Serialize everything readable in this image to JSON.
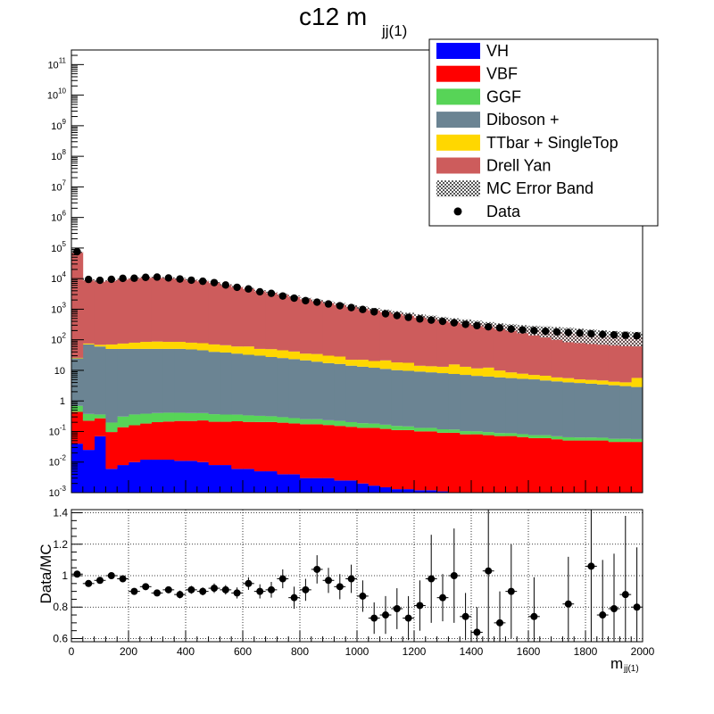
{
  "chart_data": {
    "type": "bar",
    "title": "c12  m",
    "title_subscript": "jj(1)",
    "xlabel": "m",
    "xlabel_subscript": "jj(1)",
    "ratio_ylabel": "Data/MC",
    "x_range": [
      0,
      2000
    ],
    "x_ticks": [
      0,
      200,
      400,
      600,
      800,
      1000,
      1200,
      1400,
      1600,
      1800,
      2000
    ],
    "y_scale": "log",
    "y_range": [
      0.001,
      300000000000
    ],
    "y_ticks": [
      {
        "value": 0.001,
        "base": "10",
        "exp": "-3"
      },
      {
        "value": 0.01,
        "base": "10",
        "exp": "-2"
      },
      {
        "value": 0.1,
        "base": "10",
        "exp": "-1"
      },
      {
        "value": 1,
        "base": "1",
        "exp": ""
      },
      {
        "value": 10,
        "base": "10",
        "exp": ""
      },
      {
        "value": 100,
        "base": "10",
        "exp": "2"
      },
      {
        "value": 1000,
        "base": "10",
        "exp": "3"
      },
      {
        "value": 10000,
        "base": "10",
        "exp": "4"
      },
      {
        "value": 100000,
        "base": "10",
        "exp": "5"
      },
      {
        "value": 1000000,
        "base": "10",
        "exp": "6"
      },
      {
        "value": 10000000,
        "base": "10",
        "exp": "7"
      },
      {
        "value": 100000000,
        "base": "10",
        "exp": "8"
      },
      {
        "value": 1000000000,
        "base": "10",
        "exp": "9"
      },
      {
        "value": 10000000000,
        "base": "10",
        "exp": "10"
      },
      {
        "value": 100000000000,
        "base": "10",
        "exp": "11"
      }
    ],
    "ratio_range": [
      0.58,
      1.42
    ],
    "ratio_ticks": [
      0.6,
      0.8,
      1,
      1.2,
      1.4
    ],
    "ratio_tick_labels": [
      "0.6",
      "0.8",
      "1",
      "1.2",
      "1.4"
    ],
    "bin_width": 40,
    "bin_centers": [
      20,
      60,
      100,
      140,
      180,
      220,
      260,
      300,
      340,
      380,
      420,
      460,
      500,
      540,
      580,
      620,
      660,
      700,
      740,
      780,
      820,
      860,
      900,
      940,
      980,
      1020,
      1060,
      1100,
      1140,
      1180,
      1220,
      1260,
      1300,
      1340,
      1380,
      1420,
      1460,
      1500,
      1540,
      1580,
      1620,
      1660,
      1700,
      1740,
      1780,
      1820,
      1860,
      1900,
      1940,
      1980
    ],
    "legend_position": "top-right",
    "series": [
      {
        "name": "VH",
        "color": "#0000ff",
        "values": [
          0.04,
          0.025,
          0.07,
          0.006,
          0.008,
          0.01,
          0.012,
          0.012,
          0.012,
          0.011,
          0.011,
          0.01,
          0.008,
          0.008,
          0.006,
          0.006,
          0.005,
          0.005,
          0.004,
          0.004,
          0.003,
          0.003,
          0.003,
          0.0025,
          0.0025,
          0.002,
          0.0017,
          0.0015,
          0.0013,
          0.0013,
          0.0012,
          0.0012,
          0.0011,
          0.0009,
          0.0008,
          0.001,
          0.0008,
          0.0008,
          0.0009,
          0.0008,
          0.0008,
          0.0007,
          0.0007,
          0.0007,
          0.0007,
          0.0007,
          0.0007,
          0.0007,
          0.0007,
          0.0007
        ]
      },
      {
        "name": "VBF",
        "color": "#ff0000",
        "values": [
          0.4,
          0.2,
          0.2,
          0.09,
          0.13,
          0.15,
          0.17,
          0.19,
          0.2,
          0.21,
          0.21,
          0.22,
          0.2,
          0.2,
          0.21,
          0.2,
          0.2,
          0.2,
          0.19,
          0.18,
          0.17,
          0.17,
          0.16,
          0.15,
          0.14,
          0.13,
          0.13,
          0.12,
          0.11,
          0.11,
          0.1,
          0.1,
          0.09,
          0.09,
          0.08,
          0.08,
          0.075,
          0.07,
          0.07,
          0.065,
          0.06,
          0.06,
          0.055,
          0.05,
          0.05,
          0.05,
          0.05,
          0.045,
          0.045,
          0.045
        ]
      },
      {
        "name": "GGF",
        "color": "#57d457",
        "values": [
          0.25,
          0.15,
          0.09,
          0.1,
          0.17,
          0.2,
          0.2,
          0.2,
          0.2,
          0.19,
          0.18,
          0.17,
          0.16,
          0.15,
          0.14,
          0.13,
          0.12,
          0.11,
          0.1,
          0.09,
          0.08,
          0.08,
          0.07,
          0.07,
          0.06,
          0.055,
          0.05,
          0.045,
          0.04,
          0.035,
          0.03,
          0.03,
          0.027,
          0.025,
          0.022,
          0.02,
          0.02,
          0.018,
          0.017,
          0.016,
          0.015,
          0.015,
          0.014,
          0.014,
          0.013,
          0.013,
          0.012,
          0.012,
          0.012,
          0.011
        ]
      },
      {
        "name": "Diboson +",
        "color": "#6b8493",
        "values": [
          24,
          70,
          60,
          50,
          50,
          50,
          50,
          50,
          50,
          50,
          48,
          45,
          40,
          38,
          35,
          32,
          30,
          27,
          25,
          23,
          21,
          19,
          17,
          16,
          14,
          13,
          12,
          11,
          10,
          9.5,
          9,
          8.5,
          8,
          7.5,
          7,
          6.5,
          6.2,
          5.8,
          5.5,
          5.2,
          5,
          4.6,
          4.3,
          4,
          3.8,
          3.6,
          3.4,
          3.2,
          3,
          2.8
        ]
      },
      {
        "name": "TTbar + SingleTop",
        "color": "#ffd700",
        "values": [
          1,
          5,
          8,
          20,
          25,
          30,
          35,
          37,
          35,
          35,
          32,
          32,
          30,
          28,
          25,
          28,
          20,
          22,
          20,
          18,
          14,
          15,
          13,
          12,
          8,
          9,
          8,
          10,
          8,
          8,
          5,
          5,
          5,
          8,
          6,
          5,
          6,
          4,
          3,
          2.5,
          2,
          2,
          1.5,
          1.5,
          1.2,
          1.2,
          1.2,
          1.0,
          1.0,
          2.8
        ]
      },
      {
        "name": "Drell Yan",
        "color": "#cd5c5c",
        "values": [
          75000,
          9300,
          8500,
          9000,
          10000,
          10600,
          11400,
          11300,
          10800,
          10200,
          9200,
          8600,
          7600,
          6400,
          5500,
          4800,
          4000,
          3500,
          3000,
          2600,
          2200,
          1900,
          1650,
          1450,
          1250,
          1100,
          980,
          860,
          760,
          670,
          590,
          530,
          470,
          420,
          380,
          340,
          305,
          275,
          250,
          225,
          205,
          190,
          175,
          160,
          150,
          140,
          132,
          125,
          120,
          115
        ]
      }
    ],
    "error_band": {
      "name": "MC Error Band",
      "rel_err": [
        0.02,
        0.02,
        0.02,
        0.02,
        0.02,
        0.02,
        0.02,
        0.02,
        0.02,
        0.03,
        0.03,
        0.03,
        0.03,
        0.03,
        0.04,
        0.04,
        0.04,
        0.05,
        0.05,
        0.06,
        0.06,
        0.07,
        0.07,
        0.08,
        0.08,
        0.09,
        0.1,
        0.1,
        0.11,
        0.12,
        0.13,
        0.14,
        0.15,
        0.16,
        0.18,
        0.2,
        0.2,
        0.22,
        0.25,
        0.3,
        0.35,
        0.4,
        0.45,
        0.5,
        0.5,
        0.5,
        0.5,
        0.5,
        0.5,
        0.5
      ]
    },
    "data": {
      "name": "Data",
      "values": [
        76000,
        9400,
        8800,
        9500,
        10200,
        10300,
        11000,
        11200,
        10500,
        9700,
        8900,
        8200,
        7400,
        6200,
        5200,
        4600,
        3700,
        3300,
        2700,
        2300,
        1900,
        1700,
        1480,
        1300,
        1130,
        980,
        820,
        710,
        620,
        540,
        480,
        440,
        400,
        360,
        320,
        290,
        265,
        245,
        225,
        210,
        200,
        190,
        180,
        172,
        165,
        158,
        150,
        145,
        140,
        135
      ]
    },
    "ratio": {
      "values": [
        1.01,
        0.95,
        0.97,
        1.0,
        0.98,
        0.9,
        0.93,
        0.89,
        0.91,
        0.88,
        0.91,
        0.9,
        0.92,
        0.91,
        0.89,
        0.95,
        0.9,
        0.91,
        0.98,
        0.86,
        0.91,
        1.04,
        0.97,
        0.93,
        0.98,
        0.87,
        0.73,
        0.75,
        0.79,
        0.73,
        0.81,
        0.98,
        0.86,
        1.0,
        0.74,
        0.64,
        1.03,
        0.7,
        0.9,
        null,
        0.74,
        null,
        null,
        0.82,
        null,
        1.06,
        0.75,
        0.79,
        0.88,
        0.8
      ],
      "errors": [
        0.02,
        0.02,
        0.02,
        0.02,
        0.02,
        0.02,
        0.02,
        0.02,
        0.02,
        0.025,
        0.025,
        0.025,
        0.03,
        0.03,
        0.035,
        0.04,
        0.045,
        0.05,
        0.06,
        0.07,
        0.07,
        0.09,
        0.08,
        0.08,
        0.09,
        0.1,
        0.1,
        0.12,
        0.13,
        0.14,
        0.16,
        0.28,
        0.15,
        0.3,
        0.15,
        0.16,
        0.6,
        0.2,
        0.3,
        null,
        0.25,
        null,
        null,
        0.3,
        null,
        0.6,
        0.35,
        0.35,
        0.5,
        0.38
      ]
    }
  }
}
